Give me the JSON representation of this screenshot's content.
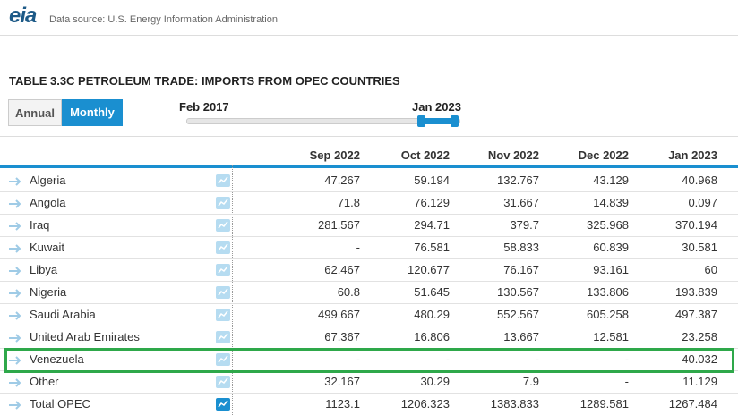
{
  "header": {
    "logo": "eia",
    "source": "Data source: U.S. Energy Information Administration"
  },
  "title": "TABLE 3.3C PETROLEUM TRADE: IMPORTS FROM OPEC COUNTRIES",
  "toggle": {
    "annual": "Annual",
    "monthly": "Monthly"
  },
  "slider": {
    "start": "Feb 2017",
    "end": "Jan 2023"
  },
  "table": {
    "columns": [
      "Sep 2022",
      "Oct 2022",
      "Nov 2022",
      "Dec 2022",
      "Jan 2023"
    ],
    "rows": [
      {
        "name": "Algeria",
        "values": [
          "47.267",
          "59.194",
          "132.767",
          "43.129",
          "40.968"
        ]
      },
      {
        "name": "Angola",
        "values": [
          "71.8",
          "76.129",
          "31.667",
          "14.839",
          "0.097"
        ]
      },
      {
        "name": "Iraq",
        "values": [
          "281.567",
          "294.71",
          "379.7",
          "325.968",
          "370.194"
        ]
      },
      {
        "name": "Kuwait",
        "values": [
          "-",
          "76.581",
          "58.833",
          "60.839",
          "30.581"
        ]
      },
      {
        "name": "Libya",
        "values": [
          "62.467",
          "120.677",
          "76.167",
          "93.161",
          "60"
        ]
      },
      {
        "name": "Nigeria",
        "values": [
          "60.8",
          "51.645",
          "130.567",
          "133.806",
          "193.839"
        ]
      },
      {
        "name": "Saudi Arabia",
        "values": [
          "499.667",
          "480.29",
          "552.567",
          "605.258",
          "497.387"
        ]
      },
      {
        "name": "United Arab Emirates",
        "values": [
          "67.367",
          "16.806",
          "13.667",
          "12.581",
          "23.258"
        ]
      },
      {
        "name": "Venezuela",
        "values": [
          "-",
          "-",
          "-",
          "-",
          "40.032"
        ]
      },
      {
        "name": "Other",
        "values": [
          "32.167",
          "30.29",
          "7.9",
          "-",
          "11.129"
        ]
      },
      {
        "name": "Total OPEC",
        "values": [
          "1123.1",
          "1206.323",
          "1383.833",
          "1289.581",
          "1267.484"
        ]
      }
    ]
  }
}
